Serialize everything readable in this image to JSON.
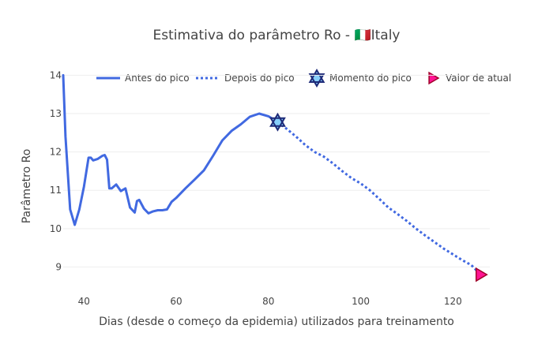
{
  "chart_data": {
    "type": "line",
    "title": "Estimativa do parâmetro Ro - 🇮🇹Italy",
    "xlabel": "Dias (desde o começo da epidemia) utilizados para treinamento",
    "ylabel": "Parâmetro Ro",
    "xlim": [
      35.5,
      128
    ],
    "ylim": [
      8.35,
      14.05
    ],
    "xticks": [
      40,
      60,
      80,
      100,
      120
    ],
    "yticks": [
      9,
      10,
      11,
      12,
      13,
      14
    ],
    "grid": true,
    "legend_position": "top",
    "series": [
      {
        "name": "Antes do pico",
        "style": "solid",
        "color": "#4169e1",
        "x": [
          35.5,
          36,
          37,
          38,
          39,
          40,
          41,
          41.5,
          42,
          43,
          44,
          44.5,
          45,
          45.5,
          46,
          47,
          48,
          49,
          50,
          51,
          51.5,
          52,
          53,
          54,
          55,
          56,
          57,
          58,
          59,
          60,
          62,
          64,
          66,
          68,
          70,
          72,
          74,
          76,
          78,
          80,
          82
        ],
        "y": [
          14.0,
          12.4,
          10.5,
          10.1,
          10.5,
          11.1,
          11.85,
          11.85,
          11.78,
          11.82,
          11.9,
          11.92,
          11.8,
          11.05,
          11.05,
          11.15,
          10.98,
          11.05,
          10.55,
          10.42,
          10.72,
          10.75,
          10.52,
          10.4,
          10.45,
          10.48,
          10.48,
          10.5,
          10.7,
          10.8,
          11.05,
          11.28,
          11.52,
          11.9,
          12.3,
          12.55,
          12.72,
          12.92,
          13.0,
          12.93,
          12.78
        ]
      },
      {
        "name": "Depois do pico",
        "style": "dotted",
        "color": "#4169e1",
        "x": [
          82,
          84,
          86,
          88,
          90,
          92,
          94,
          96,
          98,
          100,
          102,
          104,
          106,
          108,
          110,
          112,
          114,
          116,
          118,
          120,
          122,
          124,
          126
        ],
        "y": [
          12.78,
          12.6,
          12.4,
          12.18,
          12.0,
          11.88,
          11.7,
          11.5,
          11.32,
          11.18,
          11.0,
          10.78,
          10.55,
          10.38,
          10.2,
          10.0,
          9.82,
          9.65,
          9.48,
          9.33,
          9.18,
          9.05,
          8.8
        ]
      },
      {
        "name": "Momento do pico",
        "marker": "star-of-david",
        "color": "#87cefa",
        "x": [
          82
        ],
        "y": [
          12.78
        ]
      },
      {
        "name": "Valor de atual",
        "marker": "triangle-right",
        "color": "#ff1493",
        "x": [
          126
        ],
        "y": [
          8.8
        ]
      }
    ]
  }
}
